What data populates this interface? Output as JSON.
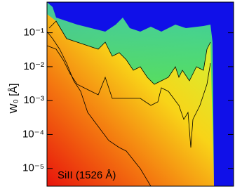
{
  "chart_data": {
    "type": "heatmap",
    "ylabel": "W₀ [Å]",
    "annotation": "SiII (1526 Å)",
    "ylog": true,
    "ylim": [
      3e-06,
      0.8
    ],
    "yticks": [
      {
        "value": 1e-05,
        "label": "10⁻⁵"
      },
      {
        "value": 0.0001,
        "label": "10⁻⁴"
      },
      {
        "value": 0.001,
        "label": "10⁻³"
      },
      {
        "value": 0.01,
        "label": "10⁻²"
      },
      {
        "value": 0.1,
        "label": "10⁻¹"
      }
    ]
  }
}
